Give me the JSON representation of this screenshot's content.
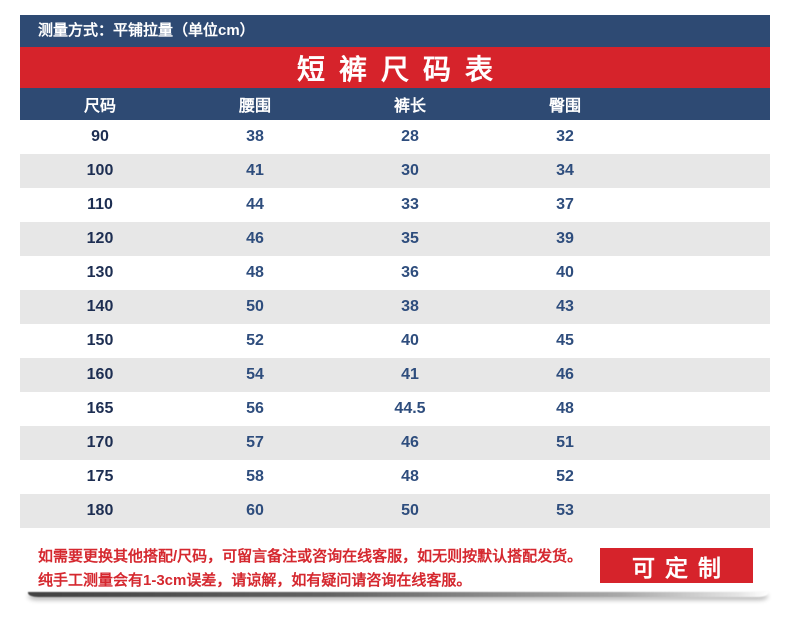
{
  "chart_data": {
    "type": "table",
    "title": "短裤尺码表",
    "subtitle": "测量方式：平铺拉量（单位cm）",
    "columns": [
      "尺码",
      "腰围",
      "裤长",
      "臀围"
    ],
    "rows": [
      [
        "90",
        "38",
        "28",
        "32"
      ],
      [
        "100",
        "41",
        "30",
        "34"
      ],
      [
        "110",
        "44",
        "33",
        "37"
      ],
      [
        "120",
        "46",
        "35",
        "39"
      ],
      [
        "130",
        "48",
        "36",
        "40"
      ],
      [
        "140",
        "50",
        "38",
        "43"
      ],
      [
        "150",
        "52",
        "40",
        "45"
      ],
      [
        "160",
        "54",
        "41",
        "46"
      ],
      [
        "165",
        "56",
        "44.5",
        "48"
      ],
      [
        "170",
        "57",
        "46",
        "51"
      ],
      [
        "175",
        "58",
        "48",
        "52"
      ],
      [
        "180",
        "60",
        "50",
        "53"
      ]
    ]
  },
  "top_bar": {
    "text": "测量方式：平铺拉量（单位cm）"
  },
  "title_bar": {
    "title": "短裤尺码表"
  },
  "notes": {
    "line1": "如需要更换其他搭配/尺码，可留言备注或咨询在线客服，如无则按默认搭配发货。",
    "line2": "纯手工测量会有1-3cm误差，请谅解，如有疑问请咨询在线客服。"
  },
  "customize_button": {
    "label": "可定制"
  },
  "colors": {
    "navy": "#2e4a73",
    "red": "#d6232b",
    "row_alt_gray": "#e7e7e7",
    "size_text": "#1d2e52",
    "value_text": "#2e4d7d",
    "note_red": "#d5282f",
    "header_text": "#ffffff"
  }
}
